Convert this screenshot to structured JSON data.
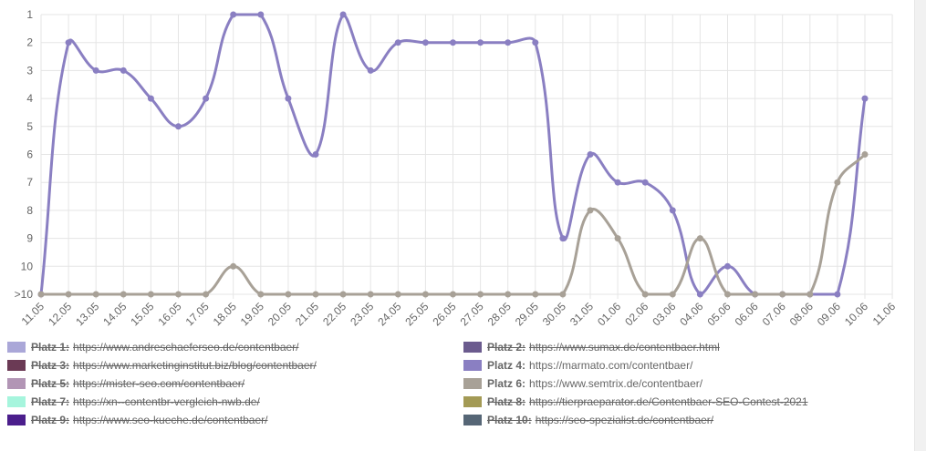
{
  "chart_data": {
    "type": "line",
    "categories": [
      "11.05",
      "12.05",
      "13.05",
      "14.05",
      "15.05",
      "16.05",
      "17.05",
      "18.05",
      "19.05",
      "20.05",
      "21.05",
      "22.05",
      "23.05",
      "24.05",
      "25.05",
      "26.05",
      "27.05",
      "28.05",
      "29.05",
      "30.05",
      "31.05",
      "01.06",
      "02.06",
      "03.06",
      "04.06",
      "05.06",
      "06.06",
      "07.06",
      "08.06",
      "09.06",
      "10.06",
      "11.06"
    ],
    "ylim": [
      11,
      1
    ],
    "yticks": [
      1,
      2,
      3,
      4,
      5,
      6,
      7,
      8,
      9,
      10,
      {
        "value": 11,
        "label": ">10"
      }
    ],
    "grid": true,
    "series": [
      {
        "label": "Platz 1:",
        "url": "https://www.andreschaeferseo.de/contentbaer/",
        "color": "#aaa7d8",
        "hidden": true
      },
      {
        "label": "Platz 2:",
        "url": "https://www.sumax.de/contentbaer.html",
        "color": "#6b5b8e",
        "hidden": true
      },
      {
        "label": "Platz 3:",
        "url": "https://www.marketinginstitut.biz/blog/contentbaer/",
        "color": "#6b3a55",
        "hidden": true
      },
      {
        "label": "Platz 4:",
        "url": "https://marmato.com/contentbaer/",
        "color": "#8a7fc2",
        "hidden": false,
        "values": [
          11,
          2,
          3,
          3,
          4,
          5,
          4,
          1,
          1,
          4,
          6,
          1,
          3,
          2,
          2,
          2,
          2,
          2,
          2,
          9,
          6,
          7,
          7,
          8,
          11,
          10,
          11,
          11,
          11,
          11,
          4,
          null
        ]
      },
      {
        "label": "Platz 5:",
        "url": "https://mister-seo.com/contentbaer/",
        "color": "#b295b5",
        "hidden": true
      },
      {
        "label": "Platz 6:",
        "url": "https://www.semtrix.de/contentbaer/",
        "color": "#a8a197",
        "hidden": false,
        "values": [
          11,
          11,
          11,
          11,
          11,
          11,
          11,
          10,
          11,
          11,
          11,
          11,
          11,
          11,
          11,
          11,
          11,
          11,
          11,
          11,
          8,
          9,
          11,
          11,
          9,
          11,
          11,
          11,
          11,
          7,
          6,
          null
        ]
      },
      {
        "label": "Platz 7:",
        "url": "https://xn--contentbr-vergleich-nwb.de/",
        "color": "#a6f5dd",
        "hidden": true
      },
      {
        "label": "Platz 8:",
        "url": "https://tierpraeparator.de/Contentbaer-SEO-Contest-2021",
        "color": "#a39a55",
        "hidden": true
      },
      {
        "label": "Platz 9:",
        "url": "https://www.seo-kueche.de/contentbaer/",
        "color": "#4b1e8c",
        "hidden": true
      },
      {
        "label": "Platz 10:",
        "url": "https://seo-spezialist.de/contentbaer/",
        "color": "#566676",
        "hidden": true
      }
    ]
  }
}
